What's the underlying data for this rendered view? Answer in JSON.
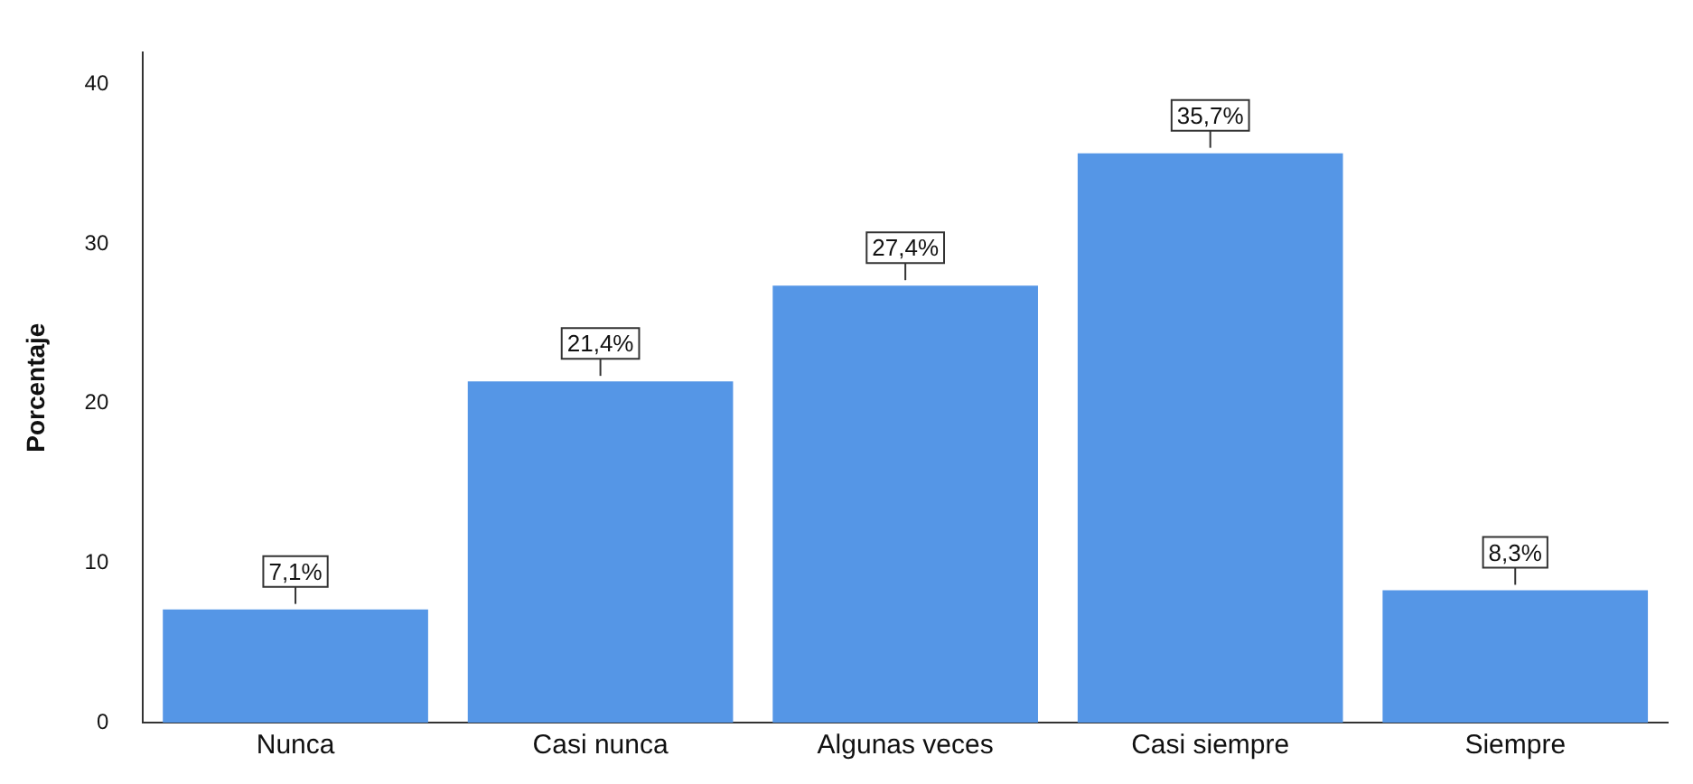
{
  "chart_data": {
    "type": "bar",
    "ylabel": "Porcentaje",
    "categories": [
      "Nunca",
      "Casi nunca",
      "Algunas veces",
      "Casi siempre",
      "Siempre"
    ],
    "values": [
      7.1,
      21.4,
      27.4,
      35.7,
      8.3
    ],
    "value_labels": [
      "7,1%",
      "21,4%",
      "27,4%",
      "35,7%",
      "8,3%"
    ],
    "color": "#5596e6",
    "ylim": [
      0,
      42
    ],
    "yticks": [
      0,
      10,
      20,
      30,
      40
    ],
    "grid": false,
    "legend": false
  }
}
